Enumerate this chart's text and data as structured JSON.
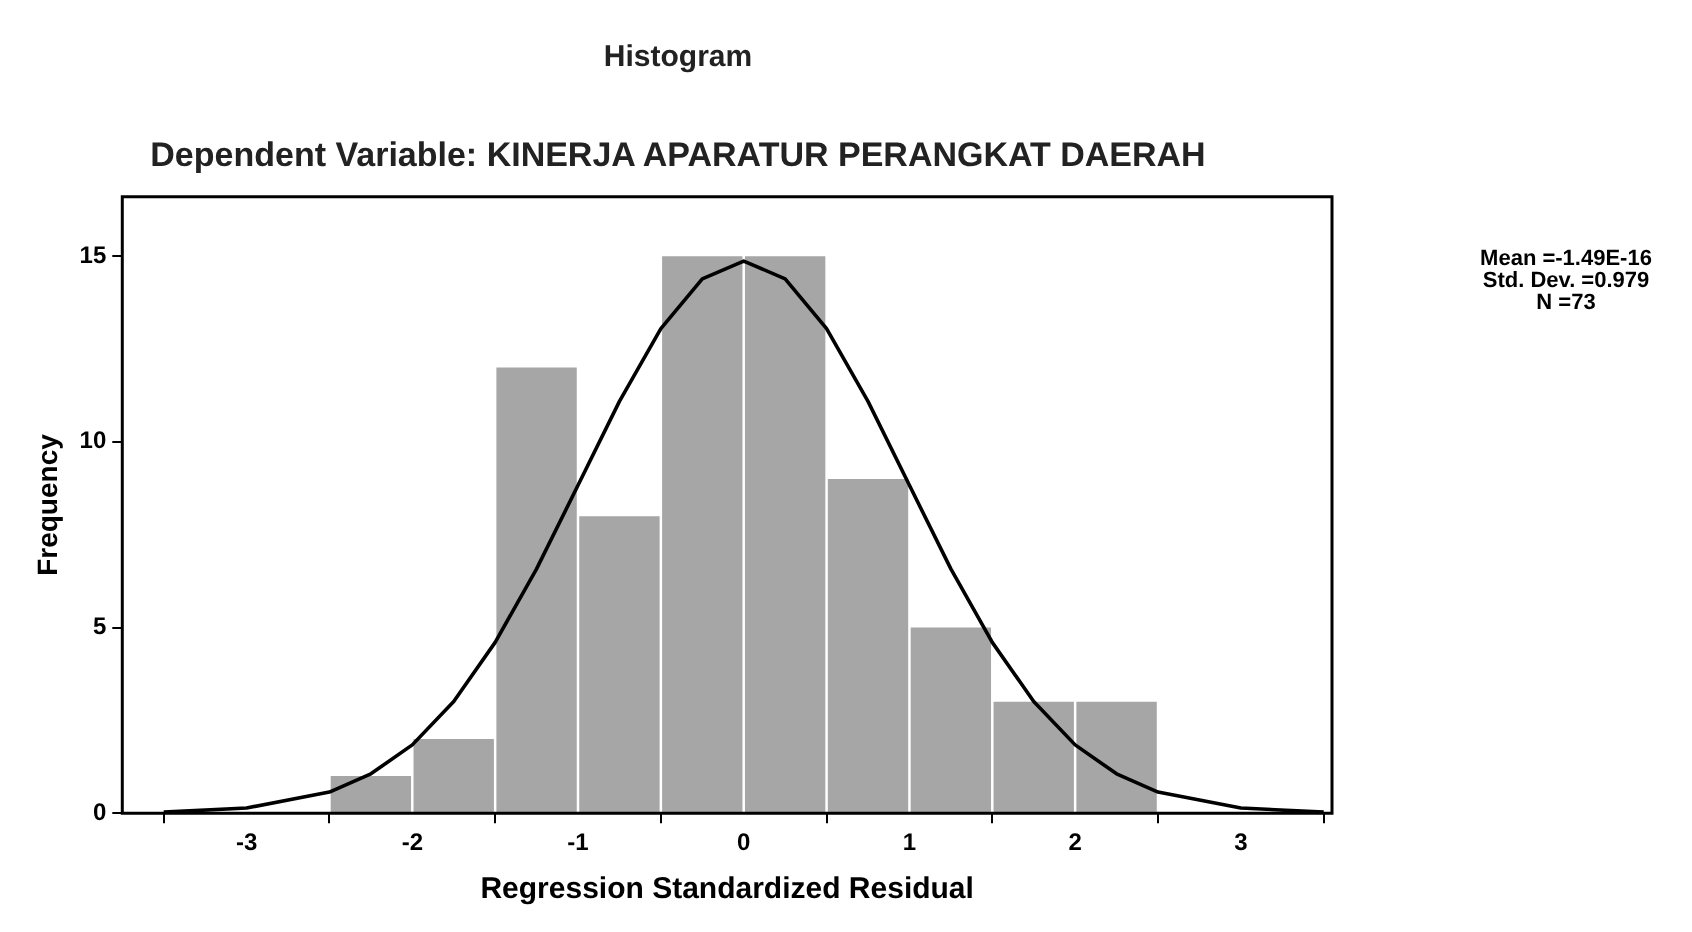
{
  "chart_data": {
    "type": "histogram",
    "title": "Histogram",
    "subtitle": "Dependent Variable: KINERJA APARATUR PERANGKAT DAERAH",
    "xlabel": "Regression Standardized Residual",
    "ylabel": "Frequency",
    "bins": [
      -2.5,
      -2,
      -1.5,
      -1,
      -0.5,
      0,
      0.5,
      1,
      1.5,
      2,
      2.5
    ],
    "values": [
      1,
      2,
      12,
      8,
      15,
      15,
      9,
      5,
      3,
      3
    ],
    "color": "#a6a6a6",
    "series": [
      {
        "type": "line",
        "color": "#000000",
        "x": [
          -3.5,
          -3,
          -2.5,
          -2.25,
          -2,
          -1.75,
          -1.5,
          -1.25,
          -1,
          -0.75,
          -0.5,
          -0.25,
          0,
          0.25,
          0.5,
          0.75,
          1,
          1.25,
          1.5,
          1.75,
          2,
          2.25,
          2.5,
          3,
          3.5
        ],
        "values": [
          0.03,
          0.14,
          0.57,
          1.06,
          1.84,
          3.01,
          4.6,
          6.58,
          8.83,
          11.09,
          13.05,
          14.39,
          14.87,
          14.39,
          13.05,
          11.09,
          8.83,
          6.58,
          4.6,
          3.01,
          1.84,
          1.06,
          0.57,
          0.14,
          0.03
        ]
      }
    ],
    "xlim": [
      -3.75,
      3.55
    ],
    "ylim": [
      0,
      16.6
    ],
    "xticks": [
      -3,
      -2,
      -1,
      0,
      1,
      2,
      3
    ],
    "yticks": [
      0,
      5,
      10,
      15
    ],
    "grid": false,
    "legend": false,
    "marker": "none",
    "annotations": [
      "Mean =-1.49E-16",
      "Std. Dev. =0.979",
      "N =73"
    ]
  }
}
